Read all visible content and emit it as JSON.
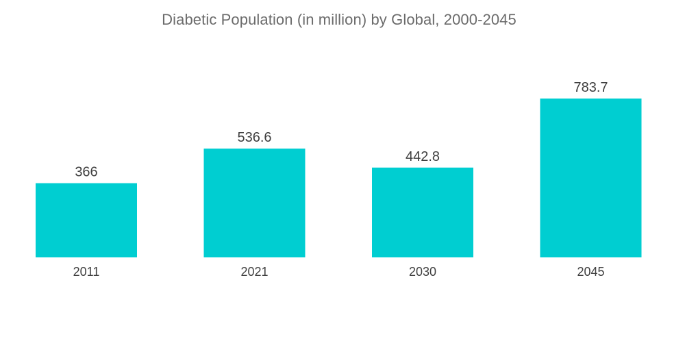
{
  "chart_data": {
    "type": "bar",
    "title": "Diabetic Population (in million) by Global, 2000-2045",
    "categories": [
      "2011",
      "2021",
      "2030",
      "2045"
    ],
    "values": [
      366,
      536.6,
      442.8,
      783.7
    ],
    "value_labels": [
      "366",
      "536.6",
      "442.8",
      "783.7"
    ],
    "xlabel": "",
    "ylabel": "",
    "ylim": [
      0,
      800
    ],
    "grid": false,
    "legend": "none",
    "bar_color": "#00CED1"
  }
}
